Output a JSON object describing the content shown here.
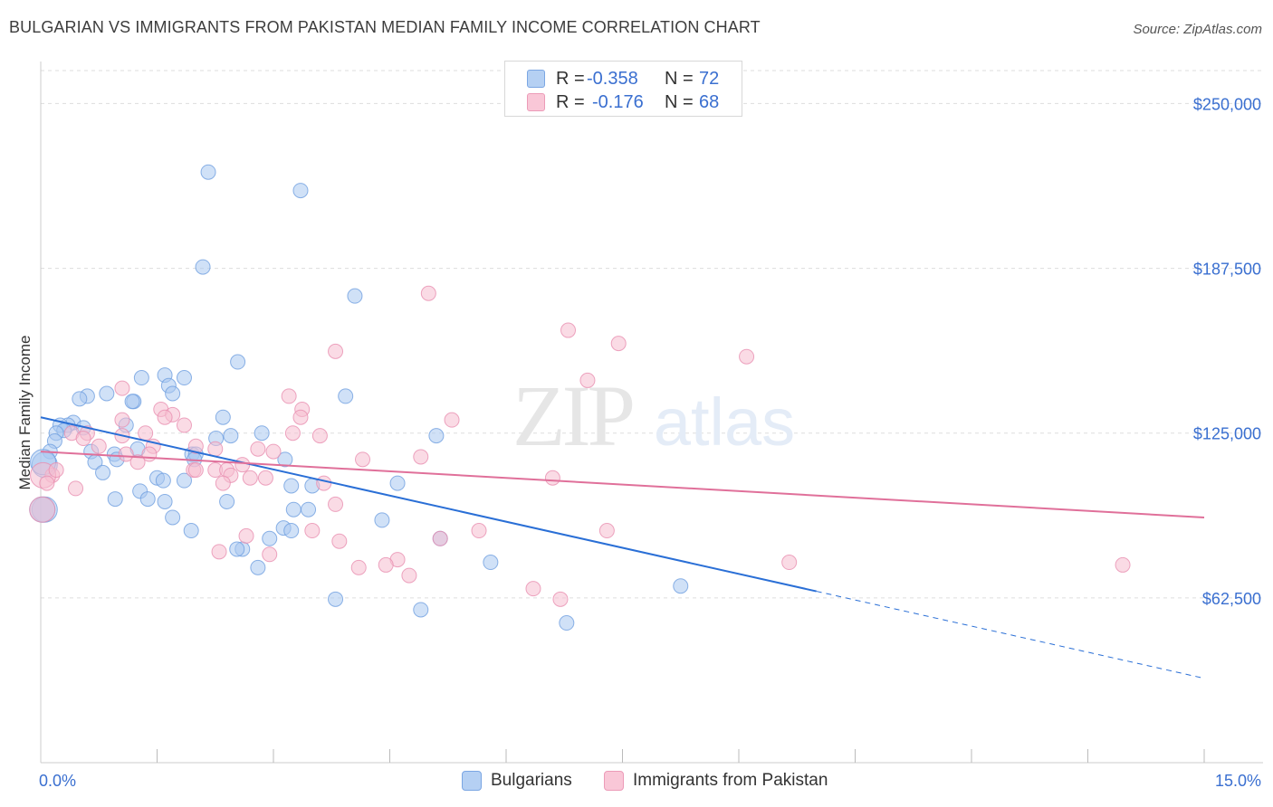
{
  "title": "BULGARIAN VS IMMIGRANTS FROM PAKISTAN MEDIAN FAMILY INCOME CORRELATION CHART",
  "source": "Source: ZipAtlas.com",
  "watermark": {
    "zip": "ZIP",
    "atlas": "atlas"
  },
  "colors": {
    "blue": "#a9c8f0",
    "blue_stroke": "#6f9fe0",
    "blue_line": "#2a6fd6",
    "pink": "#f6bdd0",
    "pink_stroke": "#e98fb0",
    "pink_line": "#e0709a",
    "axis_label": "#3a6fd0",
    "grid": "#dddddd"
  },
  "legend": {
    "rows": [
      {
        "r_label": "R =",
        "r_value": "-0.358",
        "n_label": "N =",
        "n_value": "72"
      },
      {
        "r_label": "R =",
        "r_value": "-0.176",
        "n_label": "N =",
        "n_value": "68"
      }
    ]
  },
  "bottom_legend": [
    "Bulgarians",
    "Immigrants from Pakistan"
  ],
  "chart_data": {
    "type": "scatter",
    "xlabel": "",
    "ylabel": "Median Family Income",
    "xlim": [
      0,
      15
    ],
    "ylim": [
      0,
      262500
    ],
    "x_tick_labels": [
      "0.0%",
      "15.0%"
    ],
    "y_ticks": [
      62500,
      125000,
      187500,
      250000
    ],
    "y_tick_labels": [
      "$62,500",
      "$125,000",
      "$187,500",
      "$250,000"
    ],
    "grid": true,
    "series": [
      {
        "name": "Bulgarians",
        "r": -0.358,
        "n": 72,
        "trend": {
          "x0": 0.0,
          "y0": 131000,
          "x1": 10.0,
          "y1": 65000,
          "dashed_to_x": 15.0,
          "dashed_to_y": 32000
        },
        "points": [
          [
            2.16,
            224000
          ],
          [
            3.35,
            217000
          ],
          [
            2.09,
            188000
          ],
          [
            4.05,
            177000
          ],
          [
            2.54,
            152000
          ],
          [
            1.3,
            146000
          ],
          [
            1.85,
            146000
          ],
          [
            1.6,
            147000
          ],
          [
            1.65,
            143000
          ],
          [
            1.7,
            140000
          ],
          [
            0.85,
            140000
          ],
          [
            0.6,
            139000
          ],
          [
            0.5,
            138000
          ],
          [
            1.2,
            137000
          ],
          [
            1.18,
            137000
          ],
          [
            3.93,
            139000
          ],
          [
            2.35,
            131000
          ],
          [
            0.42,
            129000
          ],
          [
            0.35,
            128000
          ],
          [
            0.25,
            128000
          ],
          [
            0.55,
            127000
          ],
          [
            1.1,
            128000
          ],
          [
            0.3,
            126000
          ],
          [
            0.2,
            125000
          ],
          [
            2.26,
            123000
          ],
          [
            0.18,
            122000
          ],
          [
            2.45,
            124000
          ],
          [
            2.85,
            125000
          ],
          [
            5.1,
            124000
          ],
          [
            0.12,
            118000
          ],
          [
            1.25,
            119000
          ],
          [
            0.65,
            118000
          ],
          [
            0.95,
            117000
          ],
          [
            1.95,
            117000
          ],
          [
            2.0,
            117000
          ],
          [
            1.98,
            115000
          ],
          [
            0.98,
            115000
          ],
          [
            0.7,
            114000
          ],
          [
            0.05,
            113000
          ],
          [
            3.15,
            115000
          ],
          [
            0.8,
            110000
          ],
          [
            1.5,
            108000
          ],
          [
            1.58,
            107000
          ],
          [
            1.85,
            107000
          ],
          [
            4.6,
            106000
          ],
          [
            3.23,
            105000
          ],
          [
            3.5,
            105000
          ],
          [
            1.28,
            103000
          ],
          [
            0.96,
            100000
          ],
          [
            1.38,
            100000
          ],
          [
            1.6,
            99000
          ],
          [
            2.4,
            99000
          ],
          [
            3.26,
            96000
          ],
          [
            3.45,
            96000
          ],
          [
            1.7,
            93000
          ],
          [
            4.4,
            92000
          ],
          [
            3.13,
            89000
          ],
          [
            3.23,
            88000
          ],
          [
            1.94,
            88000
          ],
          [
            2.95,
            85000
          ],
          [
            5.15,
            85000
          ],
          [
            2.6,
            81000
          ],
          [
            2.53,
            81000
          ],
          [
            5.8,
            76000
          ],
          [
            2.8,
            74000
          ],
          [
            8.25,
            67000
          ],
          [
            3.8,
            62000
          ],
          [
            4.9,
            58000
          ],
          [
            6.78,
            53000
          ],
          [
            0.05,
            96000
          ],
          [
            0.02,
            96000
          ],
          [
            0.03,
            114000
          ]
        ]
      },
      {
        "name": "Immigrants from Pakistan",
        "r": -0.176,
        "n": 68,
        "trend": {
          "x0": 0.0,
          "y0": 118000,
          "x1": 15.0,
          "y1": 93000
        },
        "points": [
          [
            5.0,
            178000
          ],
          [
            6.8,
            164000
          ],
          [
            7.45,
            159000
          ],
          [
            3.8,
            156000
          ],
          [
            9.1,
            154000
          ],
          [
            7.05,
            145000
          ],
          [
            1.05,
            142000
          ],
          [
            3.2,
            139000
          ],
          [
            3.37,
            134000
          ],
          [
            3.35,
            131000
          ],
          [
            1.55,
            134000
          ],
          [
            1.7,
            132000
          ],
          [
            1.6,
            131000
          ],
          [
            1.85,
            128000
          ],
          [
            1.05,
            130000
          ],
          [
            5.3,
            130000
          ],
          [
            0.4,
            125000
          ],
          [
            0.6,
            125000
          ],
          [
            1.35,
            125000
          ],
          [
            3.25,
            125000
          ],
          [
            3.6,
            124000
          ],
          [
            1.05,
            124000
          ],
          [
            0.55,
            123000
          ],
          [
            2.0,
            120000
          ],
          [
            1.45,
            120000
          ],
          [
            2.25,
            119000
          ],
          [
            2.8,
            119000
          ],
          [
            3.0,
            118000
          ],
          [
            0.75,
            120000
          ],
          [
            1.1,
            117000
          ],
          [
            1.4,
            117000
          ],
          [
            4.9,
            116000
          ],
          [
            2.6,
            113000
          ],
          [
            4.15,
            115000
          ],
          [
            1.25,
            114000
          ],
          [
            2.25,
            111000
          ],
          [
            1.97,
            111000
          ],
          [
            2.0,
            111000
          ],
          [
            2.4,
            111000
          ],
          [
            2.45,
            109000
          ],
          [
            2.7,
            108000
          ],
          [
            2.9,
            108000
          ],
          [
            0.15,
            109000
          ],
          [
            6.6,
            108000
          ],
          [
            3.65,
            106000
          ],
          [
            2.35,
            106000
          ],
          [
            0.45,
            104000
          ],
          [
            3.8,
            98000
          ],
          [
            5.65,
            88000
          ],
          [
            7.3,
            88000
          ],
          [
            3.5,
            88000
          ],
          [
            2.65,
            86000
          ],
          [
            3.85,
            84000
          ],
          [
            5.15,
            85000
          ],
          [
            2.3,
            80000
          ],
          [
            2.95,
            79000
          ],
          [
            4.6,
            77000
          ],
          [
            4.45,
            75000
          ],
          [
            9.65,
            76000
          ],
          [
            13.95,
            75000
          ],
          [
            4.1,
            74000
          ],
          [
            4.75,
            71000
          ],
          [
            6.35,
            66000
          ],
          [
            6.7,
            62000
          ],
          [
            0.03,
            109000
          ],
          [
            0.02,
            96000
          ],
          [
            0.2,
            111000
          ],
          [
            0.08,
            106000
          ]
        ]
      }
    ]
  }
}
